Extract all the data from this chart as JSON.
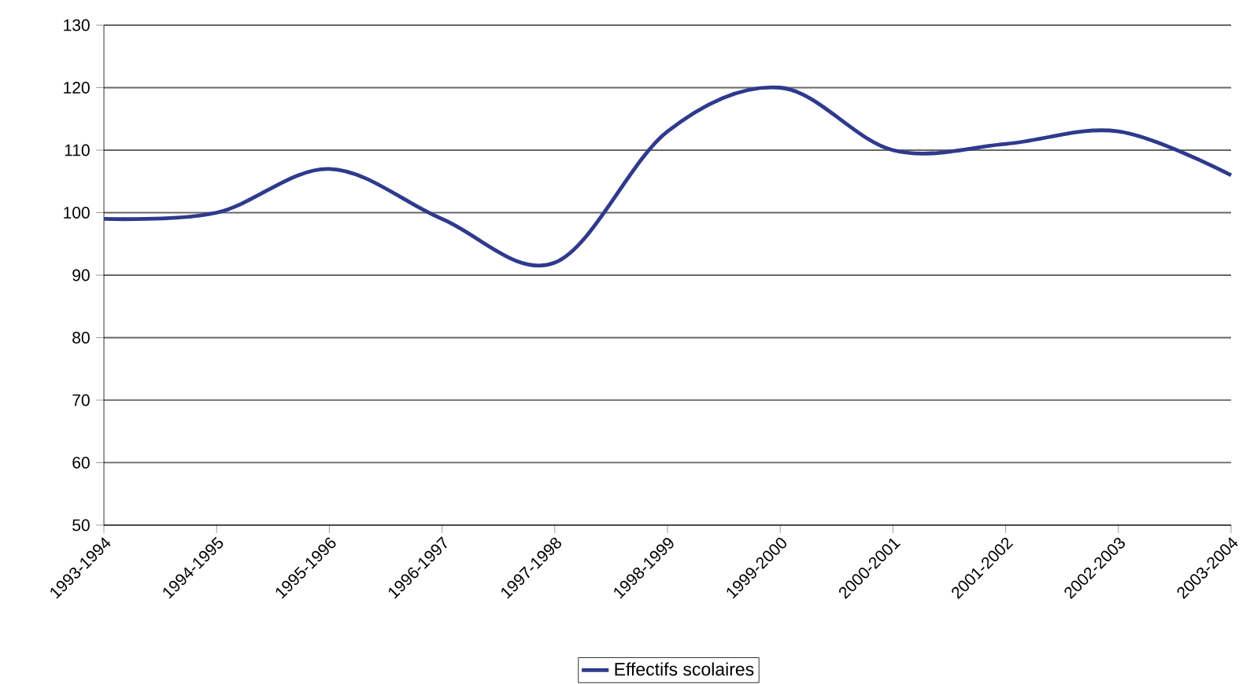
{
  "chart_data": {
    "type": "line",
    "categories": [
      "1993-1994",
      "1994-1995",
      "1995-1996",
      "1996-1997",
      "1997-1998",
      "1998-1999",
      "1999-2000",
      "2000-2001",
      "2001-2002",
      "2002-2003",
      "2003-2004"
    ],
    "series": [
      {
        "name": "Effectifs scolaires",
        "color": "#2e3a8c",
        "values": [
          99,
          100,
          107,
          99,
          92,
          113,
          120,
          110,
          111,
          113,
          106
        ]
      }
    ],
    "ylim": [
      50,
      130
    ],
    "yticks": [
      50,
      60,
      70,
      80,
      90,
      100,
      110,
      120,
      130
    ],
    "grid": "y",
    "legend": "bottom",
    "marker": "none",
    "line_style": "solid"
  }
}
